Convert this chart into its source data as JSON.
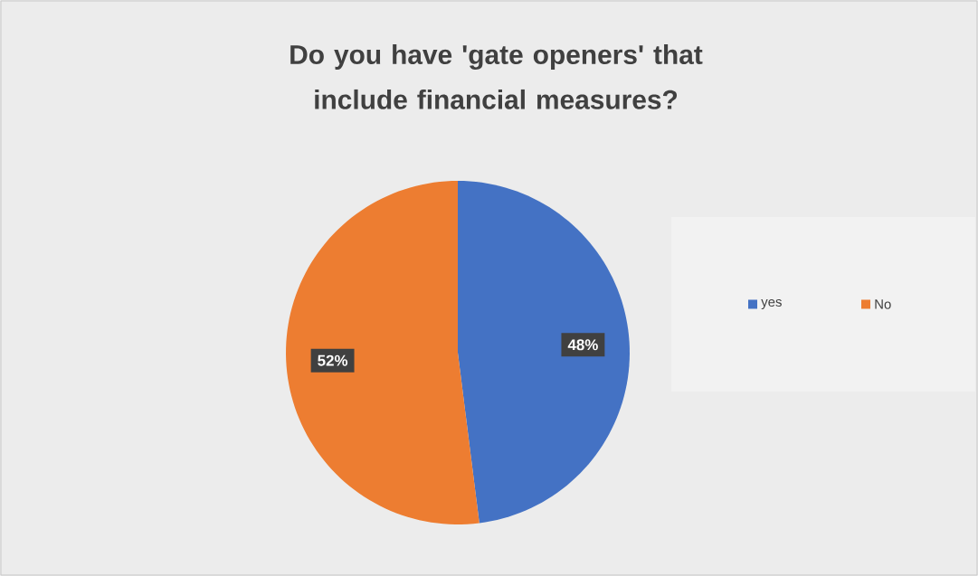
{
  "chart_data": {
    "type": "pie",
    "title": "Do you have 'gate openers' that include financial measures?",
    "categories": [
      "yes",
      "No"
    ],
    "values": [
      48,
      52
    ],
    "colors": [
      "#4472c4",
      "#ed7d31"
    ],
    "value_labels": [
      "48%",
      "52%"
    ],
    "legend": "right"
  }
}
